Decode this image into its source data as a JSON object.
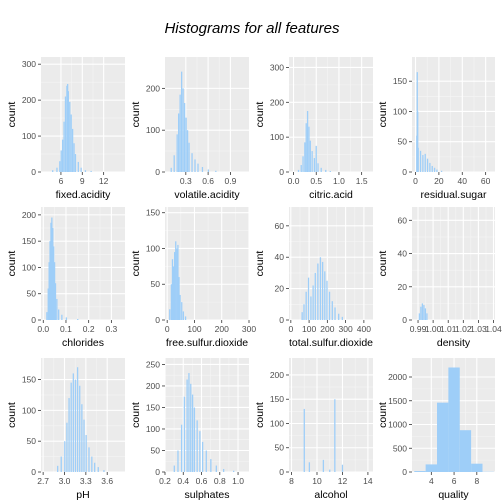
{
  "title": "Histograms for all features",
  "colors": {
    "panel_bg": "#ebebeb",
    "grid_major": "#ffffff",
    "grid_minor": "#f5f5f5",
    "bar_fill": "#9ecef8"
  },
  "chart_data": [
    {
      "type": "bar",
      "xlabel": "fixed.acidity",
      "ylabel": "count",
      "xlim": [
        3.2,
        15
      ],
      "ylim": [
        0,
        320
      ],
      "xticks": [
        6,
        9,
        12
      ],
      "xtick_labels": [
        "6",
        "9",
        "12"
      ],
      "yticks": [
        0,
        100,
        200,
        300
      ],
      "binwidth": 0.1,
      "bins": [
        [
          4.8,
          5
        ],
        [
          5.4,
          12
        ],
        [
          5.8,
          30
        ],
        [
          6,
          60
        ],
        [
          6.2,
          90
        ],
        [
          6.4,
          140
        ],
        [
          6.6,
          210
        ],
        [
          6.8,
          240
        ],
        [
          6.9,
          245
        ],
        [
          7,
          225
        ],
        [
          7.2,
          195
        ],
        [
          7.4,
          160
        ],
        [
          7.6,
          120
        ],
        [
          7.8,
          80
        ],
        [
          8,
          50
        ],
        [
          8.4,
          28
        ],
        [
          8.8,
          12
        ],
        [
          9.4,
          5
        ],
        [
          10.2,
          3
        ]
      ]
    },
    {
      "type": "bar",
      "xlabel": "volatile.acidity",
      "ylabel": "count",
      "xlim": [
        0.02,
        1.15
      ],
      "ylim": [
        0,
        275
      ],
      "xticks": [
        0.3,
        0.6,
        0.9
      ],
      "xtick_labels": [
        "0.3",
        "0.6",
        "0.9"
      ],
      "yticks": [
        0,
        100,
        200
      ],
      "binwidth": 0.01,
      "bins": [
        [
          0.1,
          10
        ],
        [
          0.14,
          40
        ],
        [
          0.18,
          90
        ],
        [
          0.2,
          140
        ],
        [
          0.22,
          185
        ],
        [
          0.24,
          240
        ],
        [
          0.26,
          200
        ],
        [
          0.28,
          165
        ],
        [
          0.3,
          130
        ],
        [
          0.32,
          100
        ],
        [
          0.34,
          70
        ],
        [
          0.38,
          45
        ],
        [
          0.42,
          30
        ],
        [
          0.46,
          20
        ],
        [
          0.52,
          12
        ],
        [
          0.6,
          6
        ],
        [
          0.7,
          3
        ]
      ]
    },
    {
      "type": "bar",
      "xlabel": "citric.acid",
      "ylabel": "count",
      "xlim": [
        -0.1,
        1.75
      ],
      "ylim": [
        0,
        330
      ],
      "xticks": [
        0,
        0.5,
        1,
        1.5
      ],
      "xtick_labels": [
        "0.0",
        "0.5",
        "1.0",
        "1.5"
      ],
      "yticks": [
        0,
        100,
        200,
        300
      ],
      "binwidth": 0.01,
      "bins": [
        [
          0.1,
          6
        ],
        [
          0.16,
          20
        ],
        [
          0.2,
          45
        ],
        [
          0.24,
          85
        ],
        [
          0.27,
          140
        ],
        [
          0.3,
          175
        ],
        [
          0.33,
          130
        ],
        [
          0.36,
          90
        ],
        [
          0.4,
          60
        ],
        [
          0.45,
          40
        ],
        [
          0.49,
          75
        ],
        [
          0.53,
          25
        ],
        [
          0.6,
          12
        ],
        [
          0.7,
          6
        ],
        [
          0.8,
          3
        ]
      ]
    },
    {
      "type": "bar",
      "xlabel": "residual.sugar",
      "ylabel": "count",
      "xlim": [
        -3,
        68
      ],
      "ylim": [
        0,
        190
      ],
      "xticks": [
        0,
        20,
        40,
        60
      ],
      "xtick_labels": [
        "0",
        "20",
        "40",
        "60"
      ],
      "yticks": [
        0,
        50,
        100,
        150
      ],
      "binwidth": 0.5,
      "bins": [
        [
          0.8,
          60
        ],
        [
          1.2,
          165
        ],
        [
          1.6,
          100
        ],
        [
          2,
          40
        ],
        [
          4,
          35
        ],
        [
          6,
          28
        ],
        [
          8,
          30
        ],
        [
          10,
          22
        ],
        [
          12,
          15
        ],
        [
          14,
          10
        ],
        [
          16,
          7
        ],
        [
          18,
          4
        ],
        [
          22,
          2
        ]
      ]
    },
    {
      "type": "bar",
      "xlabel": "chlorides",
      "ylabel": "count",
      "xlim": [
        -0.01,
        0.36
      ],
      "ylim": [
        0,
        215
      ],
      "xticks": [
        0,
        0.1,
        0.2,
        0.3
      ],
      "xtick_labels": [
        "0.0",
        "0.1",
        "0.2",
        "0.3"
      ],
      "yticks": [
        0,
        50,
        100,
        150,
        200
      ],
      "binwidth": 0.002,
      "bins": [
        [
          0.014,
          15
        ],
        [
          0.02,
          60
        ],
        [
          0.024,
          110
        ],
        [
          0.028,
          150
        ],
        [
          0.032,
          185
        ],
        [
          0.036,
          195
        ],
        [
          0.04,
          175
        ],
        [
          0.044,
          140
        ],
        [
          0.048,
          110
        ],
        [
          0.052,
          70
        ],
        [
          0.058,
          40
        ],
        [
          0.066,
          20
        ],
        [
          0.08,
          10
        ],
        [
          0.1,
          5
        ],
        [
          0.15,
          2
        ]
      ]
    },
    {
      "type": "bar",
      "xlabel": "free.sulfur.dioxide",
      "ylabel": "count",
      "xlim": [
        -8,
        300
      ],
      "ylim": [
        0,
        158
      ],
      "xticks": [
        0,
        100,
        200,
        300
      ],
      "xtick_labels": [
        "0",
        "100",
        "200",
        "300"
      ],
      "yticks": [
        0,
        50,
        100,
        150
      ],
      "binwidth": 2,
      "bins": [
        [
          8,
          15
        ],
        [
          14,
          50
        ],
        [
          18,
          85
        ],
        [
          22,
          75
        ],
        [
          26,
          95
        ],
        [
          30,
          110
        ],
        [
          34,
          100
        ],
        [
          38,
          105
        ],
        [
          42,
          60
        ],
        [
          46,
          35
        ],
        [
          52,
          25
        ],
        [
          58,
          12
        ],
        [
          66,
          5
        ]
      ]
    },
    {
      "type": "bar",
      "xlabel": "total.sulfur.dioxide",
      "ylabel": "count",
      "xlim": [
        -10,
        450
      ],
      "ylim": [
        0,
        72
      ],
      "xticks": [
        0,
        100,
        200,
        300,
        400
      ],
      "xtick_labels": [
        "0",
        "100",
        "200",
        "300",
        "400"
      ],
      "yticks": [
        0,
        20,
        40,
        60
      ],
      "binwidth": 3,
      "bins": [
        [
          60,
          5
        ],
        [
          70,
          10
        ],
        [
          82,
          18
        ],
        [
          95,
          27
        ],
        [
          108,
          15
        ],
        [
          120,
          22
        ],
        [
          132,
          30
        ],
        [
          146,
          36
        ],
        [
          160,
          40
        ],
        [
          172,
          37
        ],
        [
          184,
          31
        ],
        [
          196,
          25
        ],
        [
          210,
          18
        ],
        [
          225,
          12
        ],
        [
          240,
          8
        ],
        [
          260,
          4
        ],
        [
          280,
          2
        ]
      ]
    },
    {
      "type": "bar",
      "xlabel": "density",
      "ylabel": "count",
      "xlim": [
        0.986,
        1.041
      ],
      "ylim": [
        0,
        68
      ],
      "xticks": [
        0.99,
        1,
        1.01,
        1.02,
        1.03,
        1.04
      ],
      "xtick_labels": [
        "0.99",
        "1.00",
        "1.01",
        "1.02",
        "1.03",
        "1.04"
      ],
      "yticks": [
        0,
        20,
        40,
        60
      ],
      "binwidth": 0.0001,
      "bins": [
        [
          0.9905,
          4
        ],
        [
          0.9915,
          8
        ],
        [
          0.9925,
          10
        ],
        [
          0.9935,
          9
        ],
        [
          0.9945,
          7
        ],
        [
          0.9955,
          4
        ]
      ]
    },
    {
      "type": "bar",
      "xlabel": "pH",
      "ylabel": "count",
      "xlim": [
        2.67,
        3.85
      ],
      "ylim": [
        0,
        185
      ],
      "xticks": [
        2.7,
        3,
        3.3,
        3.6
      ],
      "xtick_labels": [
        "2.7",
        "3.0",
        "3.3",
        "3.6"
      ],
      "yticks": [
        0,
        50,
        100,
        150
      ],
      "binwidth": 0.01,
      "bins": [
        [
          2.9,
          10
        ],
        [
          2.95,
          25
        ],
        [
          3,
          50
        ],
        [
          3.03,
          80
        ],
        [
          3.06,
          120
        ],
        [
          3.09,
          145
        ],
        [
          3.12,
          160
        ],
        [
          3.15,
          150
        ],
        [
          3.18,
          170
        ],
        [
          3.21,
          140
        ],
        [
          3.24,
          110
        ],
        [
          3.27,
          85
        ],
        [
          3.3,
          60
        ],
        [
          3.34,
          40
        ],
        [
          3.38,
          25
        ],
        [
          3.42,
          15
        ],
        [
          3.47,
          8
        ],
        [
          3.55,
          3
        ]
      ]
    },
    {
      "type": "bar",
      "xlabel": "sulphates",
      "ylabel": "count",
      "xlim": [
        0.2,
        1.12
      ],
      "ylim": [
        0,
        265
      ],
      "xticks": [
        0.2,
        0.4,
        0.6,
        0.8,
        1.0
      ],
      "xtick_labels": [
        "0.2",
        "0.4",
        "0.6",
        "0.8",
        "1.0"
      ],
      "yticks": [
        0,
        50,
        100,
        150,
        200,
        250
      ],
      "binwidth": 0.01,
      "bins": [
        [
          0.3,
          15
        ],
        [
          0.34,
          50
        ],
        [
          0.38,
          110
        ],
        [
          0.41,
          175
        ],
        [
          0.44,
          215
        ],
        [
          0.46,
          230
        ],
        [
          0.48,
          205
        ],
        [
          0.5,
          180
        ],
        [
          0.52,
          150
        ],
        [
          0.55,
          120
        ],
        [
          0.58,
          95
        ],
        [
          0.61,
          70
        ],
        [
          0.65,
          50
        ],
        [
          0.7,
          30
        ],
        [
          0.76,
          15
        ],
        [
          0.84,
          7
        ],
        [
          0.95,
          3
        ]
      ]
    },
    {
      "type": "bar",
      "xlabel": "alcohol",
      "ylabel": "count",
      "xlim": [
        7.8,
        14.4
      ],
      "ylim": [
        0,
        235
      ],
      "xticks": [
        8,
        10,
        12,
        14
      ],
      "xtick_labels": [
        "8",
        "10",
        "12",
        "14"
      ],
      "yticks": [
        0,
        50,
        100,
        150,
        200
      ],
      "binwidth": 0.1,
      "bins": [
        [
          9,
          130
        ],
        [
          9.4,
          20
        ],
        [
          10.5,
          25
        ],
        [
          11,
          5
        ],
        [
          11.4,
          150
        ],
        [
          12,
          15
        ]
      ]
    },
    {
      "type": "bar",
      "xlabel": "quality",
      "ylabel": "count",
      "xlim": [
        2.3,
        9.6
      ],
      "ylim": [
        0,
        2400
      ],
      "xticks": [
        4,
        6,
        8
      ],
      "xtick_labels": [
        "4",
        "6",
        "8"
      ],
      "yticks": [
        0,
        500,
        1000,
        1500,
        2000
      ],
      "binwidth": 1,
      "bins": [
        [
          3,
          20
        ],
        [
          4,
          160
        ],
        [
          5,
          1460
        ],
        [
          6,
          2200
        ],
        [
          7,
          880
        ],
        [
          8,
          175
        ],
        [
          9,
          5
        ]
      ]
    }
  ]
}
